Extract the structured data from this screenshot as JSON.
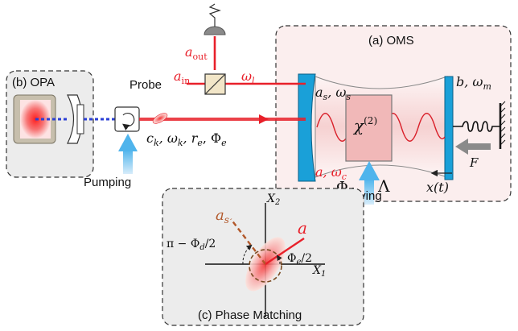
{
  "panels": {
    "oms": {
      "title": "(a) OMS"
    },
    "opa": {
      "title": "(b) OPA"
    },
    "phase": {
      "title": "(c) Phase Matching"
    }
  },
  "labels": {
    "probe": "Probe",
    "pumping": "Pumping",
    "driving": "Driving",
    "a_out_base": "a",
    "a_out_sub": "out",
    "a_in_base": "a",
    "a_in_sub": "in",
    "omega_l_base": "ω",
    "omega_l_sub": "l",
    "as_omegas": "a",
    "as_sub": "s",
    "as_comma": ", ω",
    "as_omega_sub": "s",
    "a_omegac": "a, ω",
    "a_omegac_sub": "c",
    "chi_base": "χ",
    "chi_sup": "(2)",
    "b_omegam": "b, ω",
    "b_omegam_sub": "m",
    "force": "F",
    "xt": "x(t)",
    "phi_d_base": "Φ",
    "phi_d_sub": "d",
    "lambda": "Λ",
    "ck_line_1": "c",
    "ck_sub": "k",
    "ck_rest_1": ", ω",
    "ck_sub_2": "k",
    "ck_rest_2": ", r",
    "ck_sub_3": "e",
    "ck_rest_3": ", Φ",
    "ck_sub_4": "e",
    "x2_base": "X",
    "x2_sub": "2",
    "x1_base": "X",
    "x1_sub": "1",
    "phase_as_base": "a",
    "phase_as_sub": "s",
    "phase_a": "a",
    "pi_minus": "π − Φ",
    "pi_minus_sub": "d",
    "pi_minus_tail": "/2",
    "phi_e_base": "Φ",
    "phi_e_sub": "e",
    "phi_e_tail": "/2"
  },
  "colors": {
    "beam": "#e8202a",
    "panel_oms_bg": "#fbeeee",
    "panel_gray_bg": "#ececec",
    "mirror_blue": "#1aa0d8",
    "arrow_blue": "#4fb4ec",
    "dashed_blue": "#2b3fd6",
    "as_brown": "#b2582a",
    "chi_box": "#f1b8b8"
  }
}
